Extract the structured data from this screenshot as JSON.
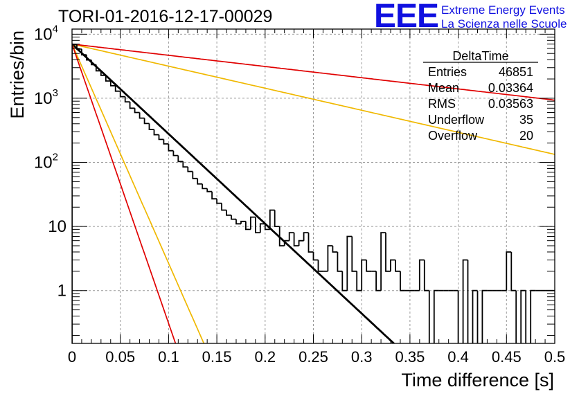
{
  "header": {
    "title": "TORI-01-2016-12-17-00029",
    "logo_mark": "EEE",
    "logo_line1": "Extreme Energy Events",
    "logo_line2": "La Scienza nelle Scuole"
  },
  "stats_box": {
    "title": "DeltaTime",
    "rows": [
      {
        "label": "Entries",
        "value": "46851"
      },
      {
        "label": "Mean",
        "value": "0.03364"
      },
      {
        "label": "RMS",
        "value": "0.03563"
      },
      {
        "label": "Underflow",
        "value": "35"
      },
      {
        "label": "Overflow",
        "value": "20"
      }
    ]
  },
  "chart_data": {
    "type": "line",
    "xlabel": "Time difference [s]",
    "ylabel": "Entries/bin",
    "xlim": [
      0,
      0.5
    ],
    "ylim": [
      0.15,
      12000
    ],
    "yscale": "log",
    "grid": true,
    "x_ticks": [
      "0",
      "0.05",
      "0.1",
      "0.15",
      "0.2",
      "0.25",
      "0.3",
      "0.35",
      "0.4",
      "0.45",
      "0.5"
    ],
    "x_tick_values": [
      0,
      0.05,
      0.1,
      0.15,
      0.2,
      0.25,
      0.3,
      0.35,
      0.4,
      0.45,
      0.5
    ],
    "y_ticks": [
      {
        "value": 10000,
        "base": "10",
        "exp": "4"
      },
      {
        "value": 1000,
        "base": "10",
        "exp": "3"
      },
      {
        "value": 100,
        "base": "10",
        "exp": "2"
      },
      {
        "value": 10,
        "base": "10",
        "exp": ""
      },
      {
        "value": 1,
        "base": "1",
        "exp": ""
      }
    ],
    "histogram": {
      "name": "DeltaTime",
      "color": "#000000",
      "bin_width": 0.005,
      "x_start": 0,
      "values": [
        6900,
        5850,
        4760,
        3960,
        3340,
        2680,
        2280,
        1860,
        1570,
        1290,
        1060,
        880,
        700,
        600,
        490,
        404,
        325,
        270,
        228,
        194,
        152,
        128,
        103,
        85,
        72,
        56,
        46,
        39,
        35,
        27,
        23,
        18,
        15,
        13,
        11,
        12,
        9,
        14,
        8,
        11,
        9,
        18,
        10,
        5,
        6,
        8,
        5,
        6,
        8,
        4,
        3,
        2,
        2,
        5,
        4,
        2,
        1,
        7,
        2,
        1,
        3,
        2,
        2,
        1,
        8,
        2,
        3,
        2,
        1,
        1,
        1,
        1,
        3,
        1,
        0,
        1,
        1,
        1,
        1,
        1,
        0,
        3,
        0,
        1,
        0,
        1,
        1,
        1,
        1,
        1,
        4,
        1,
        0,
        1,
        0,
        1,
        1,
        1,
        1,
        1
      ]
    },
    "fits": [
      {
        "name": "fit",
        "color": "#000000",
        "A": 7000,
        "tau": 0.031,
        "x_end": 0.358
      },
      {
        "name": "band-upper-short",
        "color": "#f0b800",
        "A": 7000,
        "tau": 0.0127,
        "x_end": 0.5
      },
      {
        "name": "band-lower-short",
        "color": "#e00000",
        "A": 7000,
        "tau": 0.00997,
        "x_end": 0.5
      },
      {
        "name": "band-upper-long",
        "color": "#f0b800",
        "A": 7000,
        "tau": 0.1262,
        "x_end": 0.5
      },
      {
        "name": "band-lower-long",
        "color": "#e00000",
        "A": 7000,
        "tau": 0.2484,
        "x_end": 0.5
      }
    ]
  }
}
